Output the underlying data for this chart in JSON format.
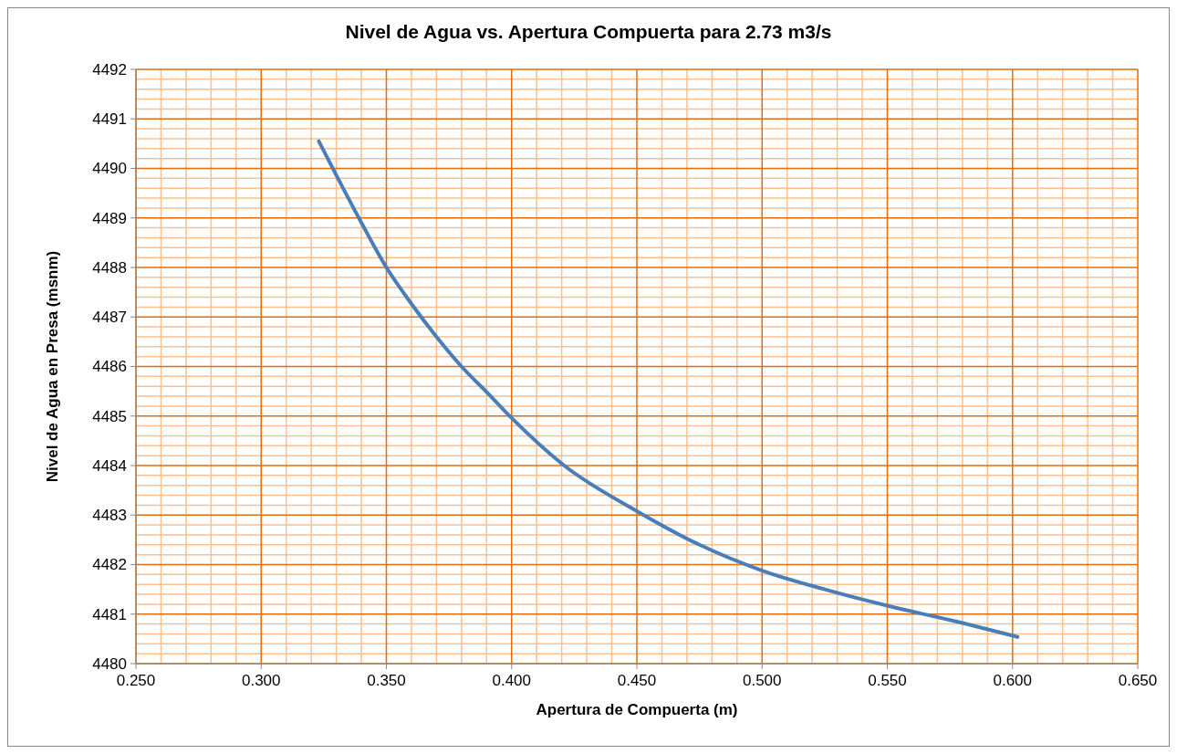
{
  "chart_data": {
    "type": "line",
    "title": "Nivel de Agua vs. Apertura Compuerta para 2.73 m3/s",
    "xlabel": "Apertura de Compuerta      (m)",
    "ylabel": "Nivel de Agua en Presa      (msnm)",
    "series": [
      {
        "color": "#4a7ebb",
        "x": [
          0.323,
          0.339,
          0.35,
          0.3595,
          0.37,
          0.38,
          0.3905,
          0.4,
          0.421,
          0.45,
          0.475,
          0.5,
          0.525,
          0.55,
          0.575,
          0.602
        ],
        "values": [
          4490.55,
          4489.0,
          4488.0,
          4487.3,
          4486.6,
          4486.0,
          4485.46,
          4484.96,
          4484.0,
          4483.08,
          4482.4,
          4481.88,
          4481.5,
          4481.17,
          4480.88,
          4480.54
        ]
      }
    ],
    "xlim": [
      0.25,
      0.65
    ],
    "xticks": [
      {
        "value": 0.25,
        "label": "0.250"
      },
      {
        "value": 0.26,
        "label": null
      },
      {
        "value": 0.27,
        "label": null
      },
      {
        "value": 0.28,
        "label": null
      },
      {
        "value": 0.29,
        "label": null
      },
      {
        "value": 0.3,
        "label": "0.300"
      },
      {
        "value": 0.31,
        "label": null
      },
      {
        "value": 0.32,
        "label": null
      },
      {
        "value": 0.33,
        "label": null
      },
      {
        "value": 0.34,
        "label": null
      },
      {
        "value": 0.35,
        "label": "0.350"
      },
      {
        "value": 0.36,
        "label": null
      },
      {
        "value": 0.37,
        "label": null
      },
      {
        "value": 0.38,
        "label": null
      },
      {
        "value": 0.39,
        "label": null
      },
      {
        "value": 0.4,
        "label": "0.400"
      },
      {
        "value": 0.41,
        "label": null
      },
      {
        "value": 0.42,
        "label": null
      },
      {
        "value": 0.43,
        "label": null
      },
      {
        "value": 0.44,
        "label": null
      },
      {
        "value": 0.45,
        "label": "0.450"
      },
      {
        "value": 0.46,
        "label": null
      },
      {
        "value": 0.47,
        "label": null
      },
      {
        "value": 0.48,
        "label": null
      },
      {
        "value": 0.49,
        "label": null
      },
      {
        "value": 0.5,
        "label": "0.500"
      },
      {
        "value": 0.51,
        "label": null
      },
      {
        "value": 0.52,
        "label": null
      },
      {
        "value": 0.53,
        "label": null
      },
      {
        "value": 0.54,
        "label": null
      },
      {
        "value": 0.55,
        "label": "0.550"
      },
      {
        "value": 0.56,
        "label": null
      },
      {
        "value": 0.57,
        "label": null
      },
      {
        "value": 0.58,
        "label": null
      },
      {
        "value": 0.59,
        "label": null
      },
      {
        "value": 0.6,
        "label": "0.600"
      },
      {
        "value": 0.61,
        "label": null
      },
      {
        "value": 0.62,
        "label": null
      },
      {
        "value": 0.63,
        "label": null
      },
      {
        "value": 0.64,
        "label": null
      },
      {
        "value": 0.65,
        "label": "0.650"
      }
    ],
    "ylim": [
      4480,
      4492
    ],
    "yticks": [
      4480,
      {
        "value": 4480.2,
        "label": null
      },
      {
        "value": 4480.4,
        "label": null
      },
      {
        "value": 4480.6,
        "label": null
      },
      {
        "value": 4480.8,
        "label": null
      },
      4481,
      {
        "value": 4481.2,
        "label": null
      },
      {
        "value": 4481.4,
        "label": null
      },
      {
        "value": 4481.6,
        "label": null
      },
      {
        "value": 4481.8,
        "label": null
      },
      4482,
      {
        "value": 4482.2,
        "label": null
      },
      {
        "value": 4482.4,
        "label": null
      },
      {
        "value": 4482.6,
        "label": null
      },
      {
        "value": 4482.8,
        "label": null
      },
      4483,
      {
        "value": 4483.2,
        "label": null
      },
      {
        "value": 4483.4,
        "label": null
      },
      {
        "value": 4483.6,
        "label": null
      },
      {
        "value": 4483.8,
        "label": null
      },
      4484,
      {
        "value": 4484.2,
        "label": null
      },
      {
        "value": 4484.4,
        "label": null
      },
      {
        "value": 4484.6,
        "label": null
      },
      {
        "value": 4484.8,
        "label": null
      },
      4485,
      {
        "value": 4485.2,
        "label": null
      },
      {
        "value": 4485.4,
        "label": null
      },
      {
        "value": 4485.6,
        "label": null
      },
      {
        "value": 4485.8,
        "label": null
      },
      4486,
      {
        "value": 4486.2,
        "label": null
      },
      {
        "value": 4486.4,
        "label": null
      },
      {
        "value": 4486.6,
        "label": null
      },
      {
        "value": 4486.8,
        "label": null
      },
      4487,
      {
        "value": 4487.2,
        "label": null
      },
      {
        "value": 4487.4,
        "label": null
      },
      {
        "value": 4487.6,
        "label": null
      },
      {
        "value": 4487.8,
        "label": null
      },
      4488,
      {
        "value": 4488.2,
        "label": null
      },
      {
        "value": 4488.4,
        "label": null
      },
      {
        "value": 4488.6,
        "label": null
      },
      {
        "value": 4488.8,
        "label": null
      },
      4489,
      {
        "value": 4489.2,
        "label": null
      },
      {
        "value": 4489.4,
        "label": null
      },
      {
        "value": 4489.6,
        "label": null
      },
      {
        "value": 4489.8,
        "label": null
      },
      4490,
      {
        "value": 4490.2,
        "label": null
      },
      {
        "value": 4490.4,
        "label": null
      },
      {
        "value": 4490.6,
        "label": null
      },
      {
        "value": 4490.8,
        "label": null
      },
      4491,
      {
        "value": 4491.2,
        "label": null
      },
      {
        "value": 4491.4,
        "label": null
      },
      {
        "value": 4491.6,
        "label": null
      },
      {
        "value": 4491.8,
        "label": null
      },
      4492
    ],
    "grid": true
  }
}
